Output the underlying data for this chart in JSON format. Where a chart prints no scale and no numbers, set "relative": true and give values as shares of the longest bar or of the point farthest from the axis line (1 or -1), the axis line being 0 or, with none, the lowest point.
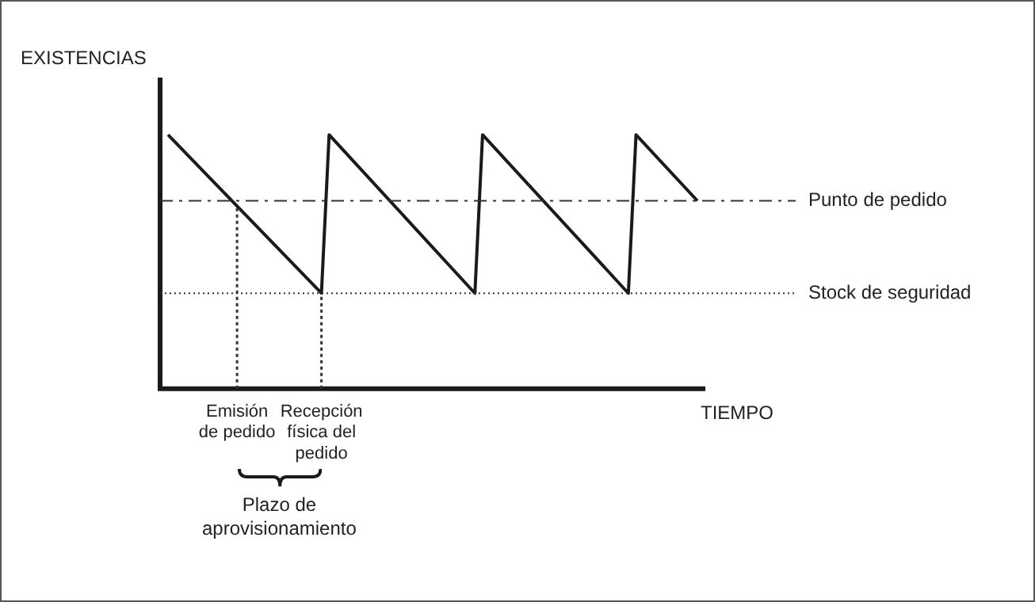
{
  "chart_data": {
    "type": "line",
    "relative": true,
    "tick_labels": "x",
    "legend": false,
    "marker": "none",
    "line_style": "solid",
    "ylabel": "EXISTENCIAS",
    "xlabel": "TIEMPO",
    "categories": [
      null,
      null,
      null,
      null,
      null,
      null,
      null,
      null,
      null,
      "Emisión de pedido",
      null,
      null,
      null,
      null,
      null,
      null,
      null,
      null,
      null,
      null,
      "Recepción física del pedido",
      null,
      null,
      null,
      null,
      null,
      null,
      null,
      null,
      null,
      null,
      null,
      null,
      null,
      null,
      null,
      null,
      null,
      null,
      null,
      null,
      null,
      null,
      null,
      null,
      null,
      null,
      null,
      null,
      null,
      null,
      null,
      null,
      null,
      null,
      null,
      null,
      null,
      null,
      null,
      null,
      null,
      null,
      null,
      null,
      null,
      null,
      null,
      null,
      null
    ],
    "series": [
      {
        "color": "#1a1a1a",
        "values": [
          1,
          null,
          null,
          null,
          null,
          null,
          null,
          null,
          null,
          null,
          null,
          null,
          null,
          null,
          null,
          null,
          null,
          null,
          null,
          null,
          0.376,
          1,
          null,
          null,
          null,
          null,
          null,
          null,
          null,
          null,
          null,
          null,
          null,
          null,
          null,
          null,
          null,
          null,
          null,
          null,
          0.376,
          1,
          null,
          null,
          null,
          null,
          null,
          null,
          null,
          null,
          null,
          null,
          null,
          null,
          null,
          null,
          null,
          null,
          null,
          null,
          0.376,
          1,
          null,
          null,
          null,
          null,
          null,
          null,
          null,
          0.74
        ]
      }
    ],
    "ref_lines": [
      {
        "axis": "y",
        "value": 0.74,
        "label": "Punto de pedido",
        "line_style": "dashed",
        "color": "#333333"
      },
      {
        "axis": "y",
        "value": 0.376,
        "label": "Stock de seguridad",
        "line_style": "dotted",
        "color": "#333333"
      },
      {
        "axis": "x",
        "value": "Emisión de pedido",
        "line_style": "dotted",
        "color": "#333333"
      },
      {
        "axis": "x",
        "value": "Recepción física del pedido",
        "line_style": "dotted",
        "color": "#333333"
      }
    ],
    "annotations": [
      "Plazo de aprovisionamiento"
    ]
  }
}
